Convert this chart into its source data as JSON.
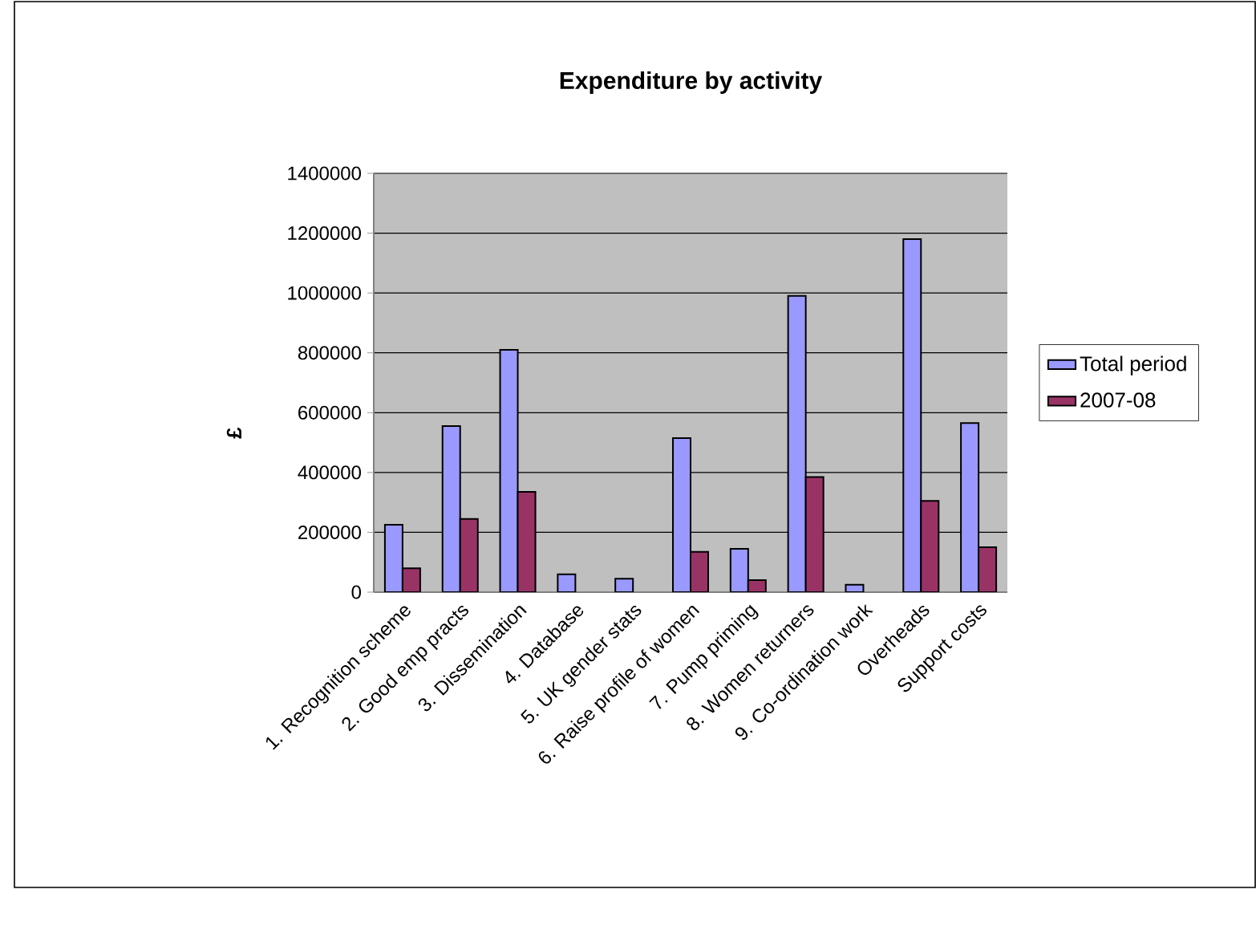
{
  "chart_data": {
    "type": "bar",
    "title": "Expenditure by activity",
    "ylabel": "£",
    "categories": [
      "1. Recognition scheme",
      "2. Good emp practs",
      "3. Dissemination",
      "4. Database",
      "5. UK gender stats",
      "6. Raise profile of women",
      "7. Pump priming",
      "8. Women returners",
      "9. Co-ordination work",
      "Overheads",
      "Support costs"
    ],
    "series": [
      {
        "name": "Total period",
        "color": "#9999ff",
        "values": [
          225000,
          555000,
          810000,
          60000,
          45000,
          515000,
          145000,
          990000,
          25000,
          1180000,
          565000
        ]
      },
      {
        "name": "2007-08",
        "color": "#993366",
        "values": [
          80000,
          245000,
          335000,
          null,
          null,
          135000,
          40000,
          385000,
          null,
          305000,
          150000
        ]
      }
    ],
    "ylim": [
      0,
      1400000
    ],
    "yticks": [
      0,
      200000,
      400000,
      600000,
      800000,
      1000000,
      1200000,
      1400000
    ],
    "grid": "y",
    "legend": "right"
  }
}
